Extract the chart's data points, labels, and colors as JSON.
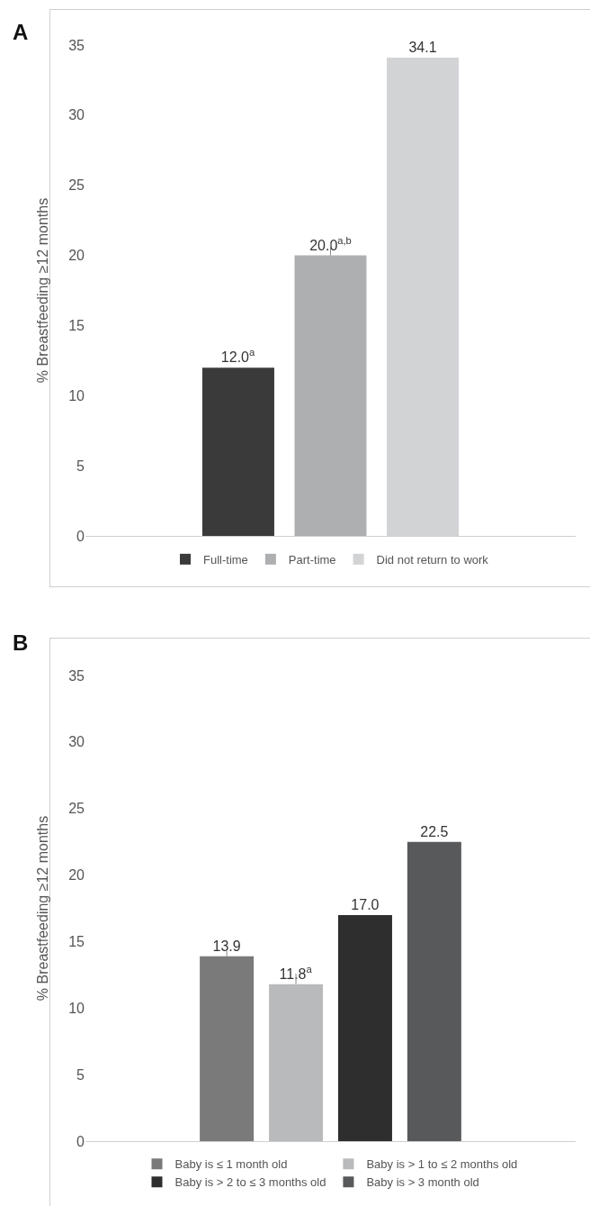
{
  "chart_data": [
    {
      "type": "bar",
      "title": "A",
      "ylabel": "% Breastfeeding ≥12 months",
      "categories": [
        null
      ],
      "ylim": [
        0,
        35
      ],
      "yticks": [
        0,
        5,
        10,
        15,
        20,
        25,
        30,
        35
      ],
      "grid": false,
      "legend": "bottom",
      "series": [
        {
          "name": "Full-time",
          "color": "#3a3a3a",
          "values": [
            12.0
          ],
          "value_labels": [
            "12.0$^{a}$"
          ]
        },
        {
          "name": "Part-time",
          "color": "#aeafb1",
          "values": [
            20.0
          ],
          "value_labels": [
            "20.0$^{a,b}$"
          ],
          "errors": [
            [
              20.0,
              20.9
            ]
          ]
        },
        {
          "name": "Did not return to work",
          "color": "#d2d3d5",
          "values": [
            34.1
          ],
          "value_labels": [
            "34.1"
          ]
        }
      ]
    },
    {
      "type": "bar",
      "title": "B",
      "ylabel": "% Breastfeeding ≥12 months",
      "categories": [
        null
      ],
      "ylim": [
        0,
        35
      ],
      "yticks": [
        0,
        5,
        10,
        15,
        20,
        25,
        30,
        35
      ],
      "grid": false,
      "legend": "bottom",
      "series": [
        {
          "name": "Baby is ≤ 1 month old",
          "color": "#7a7a7a",
          "values": [
            13.9
          ],
          "value_labels": [
            "13.9"
          ],
          "errors": [
            [
              13.9,
              14.3
            ]
          ]
        },
        {
          "name": "Baby is > 1 to ≤ 2 months old",
          "color": "#b9babc",
          "values": [
            11.8
          ],
          "value_labels": [
            "11.8$^{a}$"
          ],
          "errors": [
            [
              11.8,
              12.6
            ]
          ]
        },
        {
          "name": "Baby is > 2 to ≤ 3 months old",
          "color": "#2e2e2e",
          "values": [
            17.0
          ],
          "value_labels": [
            "17.0"
          ]
        },
        {
          "name": "Baby is > 3 month old",
          "color": "#58595b",
          "values": [
            22.5
          ],
          "value_labels": [
            "22.5"
          ]
        }
      ]
    }
  ]
}
